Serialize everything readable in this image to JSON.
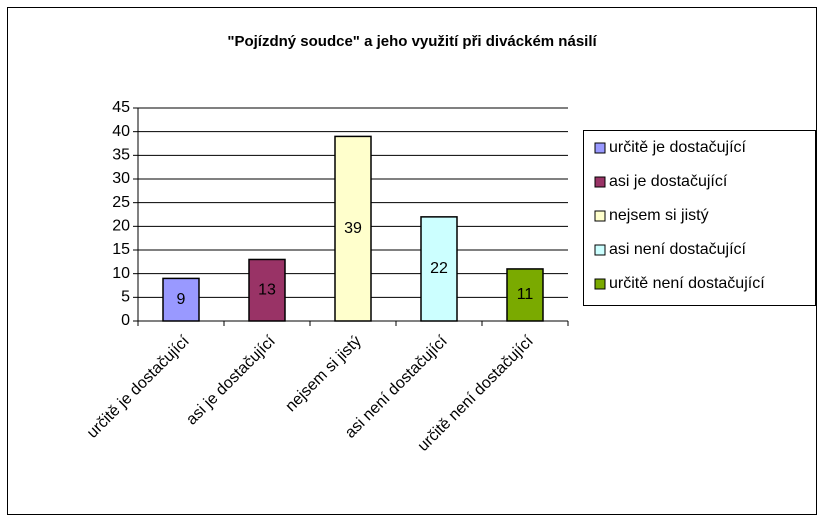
{
  "chart_data": {
    "type": "bar",
    "title": "\"Pojízdný soudce\" a jeho využití při diváckém násilí",
    "categories": [
      "určitě je dostačující",
      "asi je dostačující",
      "nejsem si jistý",
      "asi není dostačující",
      "určitě není dostačující"
    ],
    "values": [
      9,
      13,
      39,
      22,
      11
    ],
    "colors": [
      "#9999ff",
      "#993366",
      "#ffffcc",
      "#ccffff",
      "#7aaa00"
    ],
    "ylim": [
      0,
      45
    ],
    "yticks": [
      0,
      5,
      10,
      15,
      20,
      25,
      30,
      35,
      40,
      45
    ],
    "grid": true,
    "legend": "right"
  }
}
